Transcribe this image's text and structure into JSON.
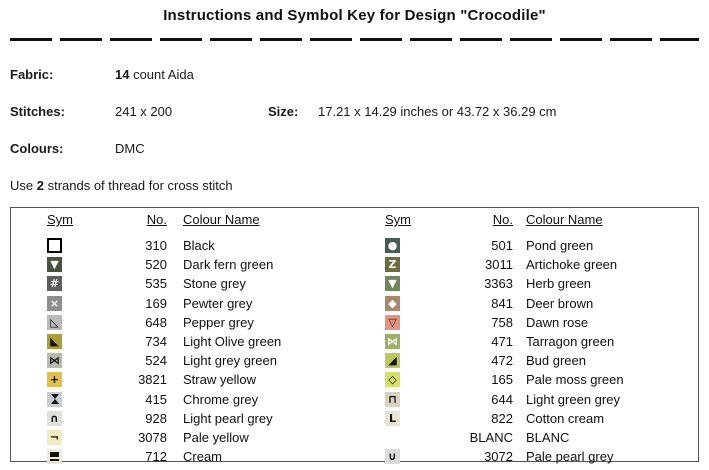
{
  "title": "Instructions and Symbol Key for Design \"Crocodile\"",
  "info": {
    "fabric_label": "Fabric:",
    "fabric_value_bold": "14",
    "fabric_value_rest": " count Aida",
    "stitches_label": "Stitches:",
    "stitches_value": "241 x 200",
    "size_label": "Size:",
    "size_value": "17.21 x 14.29 inches or 43.72 x 36.29 cm",
    "colours_label": "Colours:",
    "colours_value": "DMC",
    "strands_pre": "Use ",
    "strands_bold": "2",
    "strands_post": " strands of thread for cross stitch"
  },
  "key_table": {
    "headers": [
      "Sym",
      "No.",
      "Colour Name"
    ],
    "left_rows": [
      {
        "no": "310",
        "name": "Black",
        "sym": {
          "bg": "#ffffff",
          "fg": "#000000",
          "glyph": "",
          "border": true
        }
      },
      {
        "no": "520",
        "name": "Dark fern green",
        "sym": {
          "bg": "#47543b",
          "fg": "#ffffff",
          "glyph": "▼"
        }
      },
      {
        "no": "535",
        "name": "Stone grey",
        "sym": {
          "bg": "#5e5e5e",
          "fg": "#f2f2f2",
          "glyph": "#",
          "bold": true
        }
      },
      {
        "no": "169",
        "name": "Pewter grey",
        "sym": {
          "bg": "#8e8e8e",
          "fg": "#ffffff",
          "glyph": "×",
          "bold": true
        }
      },
      {
        "no": "648",
        "name": "Pepper grey",
        "sym": {
          "bg": "#bababa",
          "fg": "#111111",
          "glyph": "◺"
        }
      },
      {
        "no": "734",
        "name": "Light Olive green",
        "sym": {
          "bg": "#aa9d3a",
          "fg": "#111111",
          "glyph": "◣"
        }
      },
      {
        "no": "524",
        "name": "Light grey green",
        "sym": {
          "bg": "#b4bda5",
          "fg": "#111111",
          "glyph": "⋈",
          "bold": true
        }
      },
      {
        "no": "3821",
        "name": "Straw yellow",
        "sym": {
          "bg": "#e2bf49",
          "fg": "#111111",
          "glyph": "+",
          "bold": true
        }
      },
      {
        "no": "415",
        "name": "Chrome grey",
        "sym": {
          "bg": "#c7cdd1",
          "fg": "#111111",
          "glyph": "",
          "shape": "hourglass"
        }
      },
      {
        "no": "928",
        "name": "Light pearl grey",
        "sym": {
          "bg": "#dde2db",
          "fg": "#111111",
          "glyph": "∩",
          "bold": true
        }
      },
      {
        "no": "3078",
        "name": "Pale yellow",
        "sym": {
          "bg": "#f1edc1",
          "fg": "#111111",
          "glyph": "¬",
          "bold": true
        }
      },
      {
        "no": "712",
        "name": "Cream",
        "sym": {
          "bg": "#f1ebd7",
          "fg": "#111111",
          "glyph": "",
          "shape": "bar-under"
        }
      }
    ],
    "right_rows": [
      {
        "no": "501",
        "name": "Pond green",
        "sym": {
          "bg": "#435c54",
          "fg": "#ffffff",
          "glyph": "●"
        }
      },
      {
        "no": "3011",
        "name": "Artichoke green",
        "sym": {
          "bg": "#6d6d3e",
          "fg": "#ffffff",
          "glyph": "Z",
          "bold": true
        }
      },
      {
        "no": "3363",
        "name": "Herb green",
        "sym": {
          "bg": "#73875e",
          "fg": "#ffffff",
          "glyph": "▼"
        }
      },
      {
        "no": "841",
        "name": "Deer brown",
        "sym": {
          "bg": "#a9896d",
          "fg": "#ffffff",
          "glyph": "◆"
        }
      },
      {
        "no": "758",
        "name": "Dawn rose",
        "sym": {
          "bg": "#e29580",
          "fg": "#3c2a22",
          "glyph": "▽",
          "bold": true
        }
      },
      {
        "no": "471",
        "name": "Tarragon green",
        "sym": {
          "bg": "#9bb063",
          "fg": "#ffffff",
          "glyph": "⋈",
          "bold": true
        }
      },
      {
        "no": "472",
        "name": "Bud green",
        "sym": {
          "bg": "#bcc75d",
          "fg": "#111111",
          "glyph": "◢"
        }
      },
      {
        "no": "165",
        "name": "Pale moss green",
        "sym": {
          "bg": "#d6df66",
          "fg": "#111111",
          "glyph": "◇",
          "bold": true
        }
      },
      {
        "no": "644",
        "name": "Light green grey",
        "sym": {
          "bg": "#d7d3bd",
          "fg": "#111111",
          "glyph": "⊓",
          "bold": true
        }
      },
      {
        "no": "822",
        "name": "Cotton cream",
        "sym": {
          "bg": "#e9e5d2",
          "fg": "#111111",
          "glyph": "L",
          "bold": true
        }
      },
      {
        "no": "BLANC",
        "name": "BLANC",
        "sym": {
          "bg": "#ffffff",
          "fg": "#111111",
          "glyph": ""
        }
      },
      {
        "no": "3072",
        "name": "Pale pearl grey",
        "sym": {
          "bg": "#d9ddd9",
          "fg": "#111111",
          "glyph": "∪",
          "bold": true
        }
      }
    ]
  }
}
